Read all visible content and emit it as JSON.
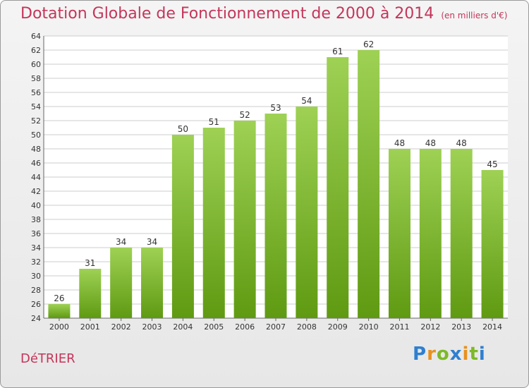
{
  "title": "Dotation Globale de Fonctionnement de 2000 à 2014",
  "subtitle": "(en milliers d'€)",
  "commune": "DéTRIER",
  "logo": "Proxiti",
  "colors": {
    "title": "#c4365a",
    "bar_top": "#9ed154",
    "bar_bottom": "#5f9a12",
    "grid": "#cccccc"
  },
  "chart_data": {
    "type": "bar",
    "title": "Dotation Globale de Fonctionnement de 2000 à 2014",
    "subtitle": "(en milliers d'€)",
    "xlabel": "",
    "ylabel": "",
    "categories": [
      "2000",
      "2001",
      "2002",
      "2003",
      "2004",
      "2005",
      "2006",
      "2007",
      "2008",
      "2009",
      "2010",
      "2011",
      "2012",
      "2013",
      "2014"
    ],
    "values": [
      26,
      31,
      34,
      34,
      50,
      51,
      52,
      53,
      54,
      61,
      62,
      48,
      48,
      48,
      45
    ],
    "ylim": [
      24,
      64
    ],
    "ytick_step": 2,
    "grid": true,
    "legend": "none"
  }
}
